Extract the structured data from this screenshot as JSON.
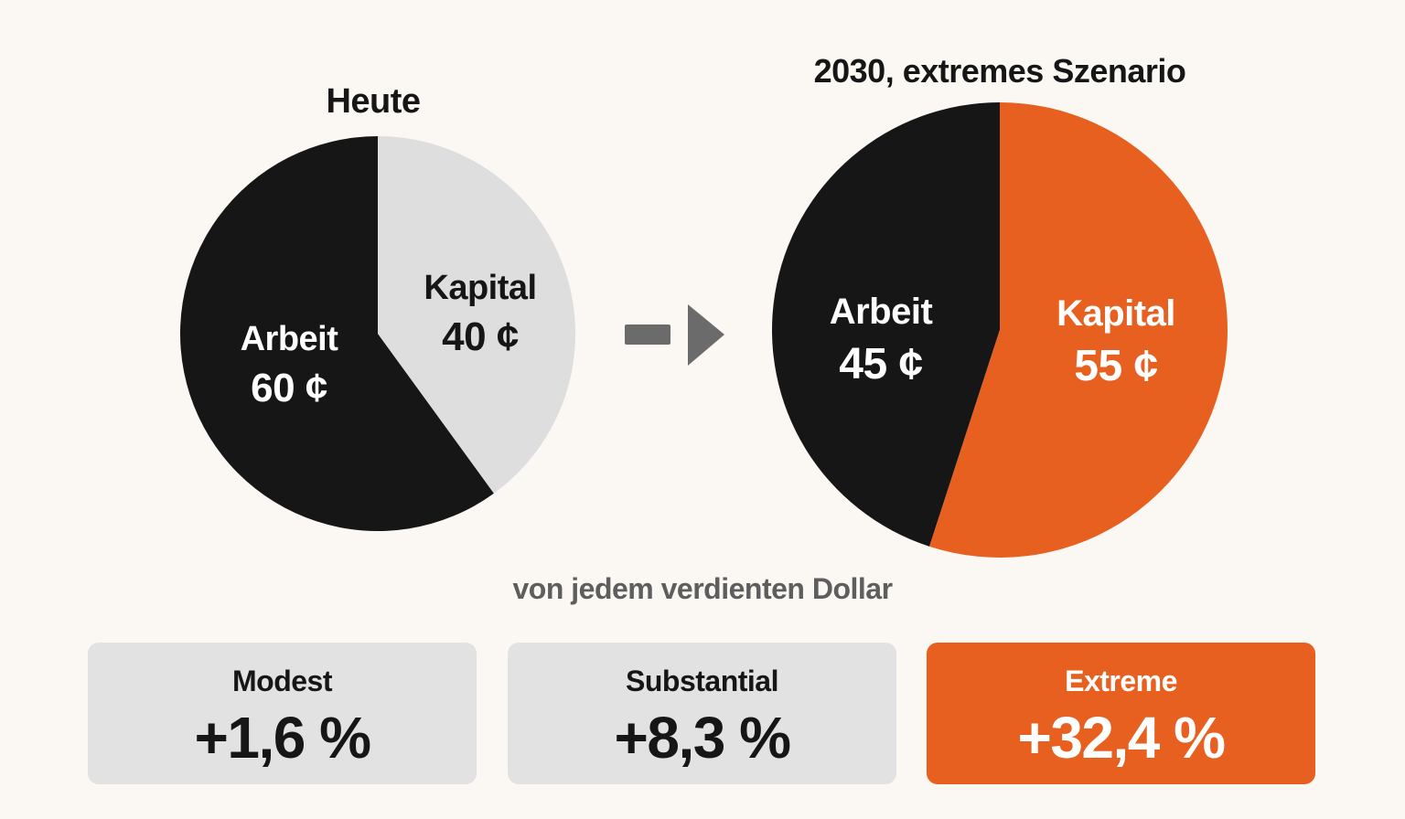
{
  "colors": {
    "background": "#fbf8f4",
    "arbeit": "#161616",
    "kapital_today": "#dedede",
    "kapital_2030": "#e8601f",
    "arrow": "#6b6b6b",
    "card_neutral": "#e2e2e2",
    "card_accent": "#e8601f"
  },
  "chart_data": [
    {
      "type": "pie",
      "title": "Heute",
      "slices": [
        {
          "label": "Arbeit",
          "value": 60,
          "value_label": "60 ¢",
          "color": "#161616",
          "text_color": "#ffffff"
        },
        {
          "label": "Kapital",
          "value": 40,
          "value_label": "40 ¢",
          "color": "#dedede",
          "text_color": "#161616"
        }
      ]
    },
    {
      "type": "pie",
      "title": "2030, extremes Szenario",
      "slices": [
        {
          "label": "Arbeit",
          "value": 45,
          "value_label": "45 ¢",
          "color": "#161616",
          "text_color": "#ffffff"
        },
        {
          "label": "Kapital",
          "value": 55,
          "value_label": "55 ¢",
          "color": "#e8601f",
          "text_color": "#ffffff"
        }
      ]
    }
  ],
  "arrow_icon": "arrow-right-icon",
  "subtitle": "von jedem verdienten Dollar",
  "scenarios": [
    {
      "label": "Modest",
      "value": "+1,6 %",
      "highlight": false
    },
    {
      "label": "Substantial",
      "value": "+8,3 %",
      "highlight": false
    },
    {
      "label": "Extreme",
      "value": "+32,4 %",
      "highlight": true
    }
  ]
}
